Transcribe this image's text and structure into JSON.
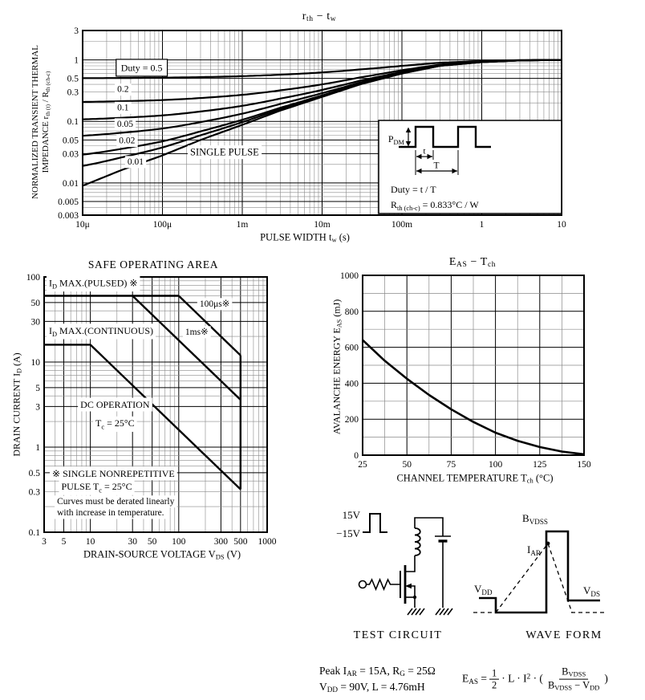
{
  "colors": {
    "ink": "#000000",
    "grid_minor": "#8a8a8a",
    "bg": "#ffffff"
  },
  "chart_data": [
    {
      "id": "thermal-impedance",
      "type": "line",
      "title_parts": [
        "r",
        {
          "sub": "th"
        },
        "  −  t",
        {
          "sub": "w"
        }
      ],
      "x_label_parts": [
        "PULSE WIDTH   t",
        {
          "sub": "w"
        },
        "   (s)"
      ],
      "y_label_line1": "NORMALIZED TRANSIENT THERMAL",
      "y_label_line2_parts": [
        "IMPEDANCE   r",
        {
          "sub": "th (t)"
        },
        " / R",
        {
          "sub": "th (ch-c)"
        }
      ],
      "x_range": [
        1e-05,
        10
      ],
      "y_range": [
        0.003,
        3
      ],
      "grid": "log-log",
      "x_ticks": [
        {
          "v": 1e-05,
          "label": "10μ"
        },
        {
          "v": 0.0001,
          "label": "100μ"
        },
        {
          "v": 0.001,
          "label": "1m"
        },
        {
          "v": 0.01,
          "label": "10m"
        },
        {
          "v": 0.1,
          "label": "100m"
        },
        {
          "v": 1,
          "label": "1"
        },
        {
          "v": 10,
          "label": "10"
        }
      ],
      "y_ticks": [
        {
          "v": 3,
          "label": "3"
        },
        {
          "v": 1,
          "label": "1"
        },
        {
          "v": 0.5,
          "label": "0.5"
        },
        {
          "v": 0.3,
          "label": "0.3"
        },
        {
          "v": 0.1,
          "label": "0.1"
        },
        {
          "v": 0.05,
          "label": "0.05"
        },
        {
          "v": 0.03,
          "label": "0.03"
        },
        {
          "v": 0.01,
          "label": "0.01"
        },
        {
          "v": 0.005,
          "label": "0.005"
        },
        {
          "v": 0.003,
          "label": "0.003"
        }
      ],
      "single_pulse": {
        "x": [
          1e-05,
          3e-05,
          0.0001,
          0.0003,
          0.001,
          0.003,
          0.01,
          0.03,
          0.1,
          0.3,
          1,
          3,
          10
        ],
        "r": [
          0.009,
          0.016,
          0.028,
          0.05,
          0.088,
          0.15,
          0.25,
          0.4,
          0.6,
          0.8,
          0.92,
          0.98,
          1.0
        ]
      },
      "duty_values": [
        0.5,
        0.2,
        0.1,
        0.05,
        0.02,
        0.01
      ],
      "curve_labels": [
        {
          "text": "Duty = 0.5",
          "x": 5.5e-05,
          "y": 0.66,
          "boxed": true,
          "size": 12
        },
        {
          "text": "0.2",
          "x": 3.2e-05,
          "y": 0.3
        },
        {
          "text": "0.1",
          "x": 3.2e-05,
          "y": 0.152
        },
        {
          "text": "0.05",
          "x": 3.4e-05,
          "y": 0.082
        },
        {
          "text": "0.02",
          "x": 3.6e-05,
          "y": 0.044
        },
        {
          "text": "0.01",
          "x": 4.6e-05,
          "y": 0.02
        },
        {
          "text": "SINGLE PULSE",
          "x": 0.0006,
          "y": 0.028,
          "size": 12.5
        }
      ],
      "inset": {
        "pdm_parts": [
          "P",
          {
            "sub": "DM"
          }
        ],
        "t_label": "t",
        "T_label": "T",
        "duty_line": "Duty = t / T",
        "rth_parts": [
          "R",
          {
            "sub": "th (ch-c)"
          },
          " = 0.833°C / W"
        ]
      }
    },
    {
      "id": "safe-operating-area",
      "type": "line",
      "title": "SAFE OPERATING AREA",
      "x_label_parts": [
        "DRAIN-SOURCE VOLTAGE   V",
        {
          "sub": "DS"
        },
        "   (V)"
      ],
      "y_label_parts": [
        "DRAIN CURRENT   I",
        {
          "sub": "D"
        },
        "   (A)"
      ],
      "x_range": [
        3,
        1000
      ],
      "y_range": [
        0.1,
        100
      ],
      "grid": "log-log",
      "x_ticks": [
        {
          "v": 3,
          "label": "3"
        },
        {
          "v": 5,
          "label": "5"
        },
        {
          "v": 10,
          "label": "10"
        },
        {
          "v": 30,
          "label": "30"
        },
        {
          "v": 50,
          "label": "50"
        },
        {
          "v": 100,
          "label": "100"
        },
        {
          "v": 300,
          "label": "300"
        },
        {
          "v": 500,
          "label": "500"
        },
        {
          "v": 1000,
          "label": "1000"
        }
      ],
      "y_ticks": [
        {
          "v": 100,
          "label": "100"
        },
        {
          "v": 50,
          "label": "50"
        },
        {
          "v": 30,
          "label": "30"
        },
        {
          "v": 10,
          "label": "10"
        },
        {
          "v": 5,
          "label": "5"
        },
        {
          "v": 3,
          "label": "3"
        },
        {
          "v": 1,
          "label": "1"
        },
        {
          "v": 0.5,
          "label": "0.5"
        },
        {
          "v": 0.3,
          "label": "0.3"
        },
        {
          "v": 0.1,
          "label": "0.1"
        }
      ],
      "series": [
        {
          "name": "id-max-pulsed",
          "points": [
            [
              3,
              60
            ],
            [
              100,
              60
            ]
          ]
        },
        {
          "name": "limit-100us",
          "points": [
            [
              100,
              60
            ],
            [
              500,
              12
            ]
          ]
        },
        {
          "name": "limit-1ms",
          "points": [
            [
              30,
              60
            ],
            [
              500,
              3.6
            ]
          ]
        },
        {
          "name": "id-max-continuous",
          "points": [
            [
              3,
              16
            ],
            [
              10,
              16
            ]
          ]
        },
        {
          "name": "dc-operation-limit",
          "points": [
            [
              10,
              16
            ],
            [
              500,
              0.32
            ]
          ]
        },
        {
          "name": "vdss-limit",
          "points": [
            [
              500,
              12
            ],
            [
              500,
              0.32
            ]
          ]
        }
      ],
      "labels": [
        {
          "parts": [
            "I",
            {
              "sub": "D"
            },
            " MAX.(PULSED) ※"
          ],
          "x": 3.4,
          "y": 78,
          "anchor": "start",
          "size": 12
        },
        {
          "parts": [
            "I",
            {
              "sub": "D"
            },
            " MAX.(CONTINUOUS)"
          ],
          "x": 3.4,
          "y": 21.5,
          "anchor": "start",
          "size": 12
        },
        {
          "text": "100μs※",
          "x": 255,
          "y": 45
        },
        {
          "text": "1ms※",
          "x": 160,
          "y": 21
        },
        {
          "text": "DC OPERATION",
          "x": 19,
          "y": 2.9,
          "size": 12
        },
        {
          "parts": [
            "T",
            {
              "sub": "c"
            },
            " = 25°C"
          ],
          "x": 19,
          "y": 1.75,
          "size": 12
        },
        {
          "text": "※ SINGLE NONREPETITIVE",
          "x": 3.7,
          "y": 0.45,
          "anchor": "start",
          "size": 12
        },
        {
          "parts": [
            "PULSE   T",
            {
              "sub": "c"
            },
            " = 25°C"
          ],
          "x": 4.7,
          "y": 0.315,
          "anchor": "start",
          "size": 12
        },
        {
          "text": "Curves must be derated linearly",
          "x": 4.2,
          "y": 0.215,
          "anchor": "start"
        },
        {
          "text": "with increase in temperature.",
          "x": 4.2,
          "y": 0.158,
          "anchor": "start"
        }
      ]
    },
    {
      "id": "avalanche-energy",
      "type": "line",
      "title_parts": [
        "E",
        {
          "sub": "AS"
        },
        "  −  T",
        {
          "sub": "ch"
        }
      ],
      "x_label_parts": [
        "CHANNEL TEMPERATURE   T",
        {
          "sub": "ch"
        },
        "   (°C)"
      ],
      "y_label_parts": [
        "AVALANCHE ENERGY   E",
        {
          "sub": "AS"
        },
        "   (mJ)"
      ],
      "x_range": [
        25,
        150
      ],
      "y_range": [
        0,
        1000
      ],
      "grid": "linear",
      "x_minor": 12.5,
      "y_minor": 100,
      "x_ticks": [
        25,
        50,
        75,
        100,
        125,
        150
      ],
      "y_ticks": [
        0,
        200,
        400,
        600,
        800,
        1000
      ],
      "curve": {
        "x": [
          25,
          37.5,
          50,
          62.5,
          75,
          87.5,
          100,
          112.5,
          125,
          137.5,
          150
        ],
        "y": [
          640,
          525,
          425,
          335,
          255,
          185,
          125,
          80,
          45,
          20,
          5
        ]
      }
    }
  ],
  "test_circuit": {
    "gate_high_label": "15V",
    "gate_low_label": "−15V",
    "caption": "TEST CIRCUIT"
  },
  "waveform": {
    "bvdss_parts": [
      "B",
      {
        "sub": "VDSS"
      }
    ],
    "iar_parts": [
      "I",
      {
        "sub": "AR"
      }
    ],
    "vdd_parts": [
      "V",
      {
        "sub": "DD"
      }
    ],
    "vds_parts": [
      "V",
      {
        "sub": "DS"
      }
    ],
    "caption": "WAVE FORM"
  },
  "notes": {
    "line1_parts": [
      "Peak I",
      {
        "sub": "AR"
      },
      " = 15A,  R",
      {
        "sub": "G"
      },
      " = 25Ω"
    ],
    "line2_parts": [
      "V",
      {
        "sub": "DD"
      },
      " = 90V,  L = 4.76mH"
    ],
    "formula": {
      "lhs_parts": [
        "E",
        {
          "sub": "AS"
        },
        " = "
      ],
      "f1_num": "1",
      "f1_den": "2",
      "mid_parts": [
        " · L · I",
        {
          "sup": "2"
        },
        " · ("
      ],
      "f2_num_parts": [
        "B",
        {
          "sub": "VDSS"
        }
      ],
      "f2_den_parts": [
        "B",
        {
          "sub": "VDSS"
        },
        " − V",
        {
          "sub": "DD"
        }
      ],
      "close": ")"
    }
  }
}
